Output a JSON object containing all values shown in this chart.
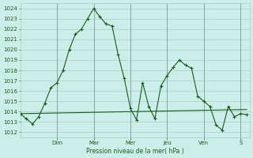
{
  "xlabel": "Pression niveau de la mer( hPa )",
  "bg_color": "#cceee8",
  "grid_color": "#aacccc",
  "line_color": "#1a5c1a",
  "ylim": [
    1011.5,
    1024.5
  ],
  "yticks": [
    1012,
    1013,
    1014,
    1015,
    1016,
    1017,
    1018,
    1019,
    1020,
    1021,
    1022,
    1023,
    1024
  ],
  "day_labels": [
    "Dim",
    "Mar",
    "Mer",
    "Jeu",
    "Ven",
    "S"
  ],
  "day_positions": [
    24,
    48,
    72,
    96,
    120,
    144
  ],
  "xlim": [
    0,
    150
  ],
  "curve1_x": [
    0,
    4,
    8,
    12,
    16,
    20,
    24,
    28,
    32,
    36,
    40,
    44,
    48,
    52,
    56,
    60,
    64,
    68,
    72,
    76,
    80,
    84,
    88,
    92,
    96,
    100,
    104,
    108,
    112,
    116,
    120,
    124,
    128,
    132,
    136,
    140,
    144,
    148
  ],
  "curve1_y": [
    1013.8,
    1013.3,
    1012.8,
    1013.5,
    1014.8,
    1016.3,
    1016.8,
    1018.0,
    1020.0,
    1021.5,
    1022.0,
    1023.0,
    1024.0,
    1023.2,
    1022.5,
    1022.3,
    1019.5,
    1017.2,
    1014.3,
    1013.2,
    1016.8,
    1014.5,
    1013.3,
    1016.5,
    1017.5,
    1018.3,
    1019.0,
    1018.5,
    1018.2,
    1015.5,
    1015.0,
    1014.5,
    1012.7,
    1012.2,
    1014.5,
    1013.5,
    1013.8,
    1013.7
  ],
  "trend_x": [
    0,
    148
  ],
  "trend_y": [
    1013.8,
    1014.2
  ]
}
